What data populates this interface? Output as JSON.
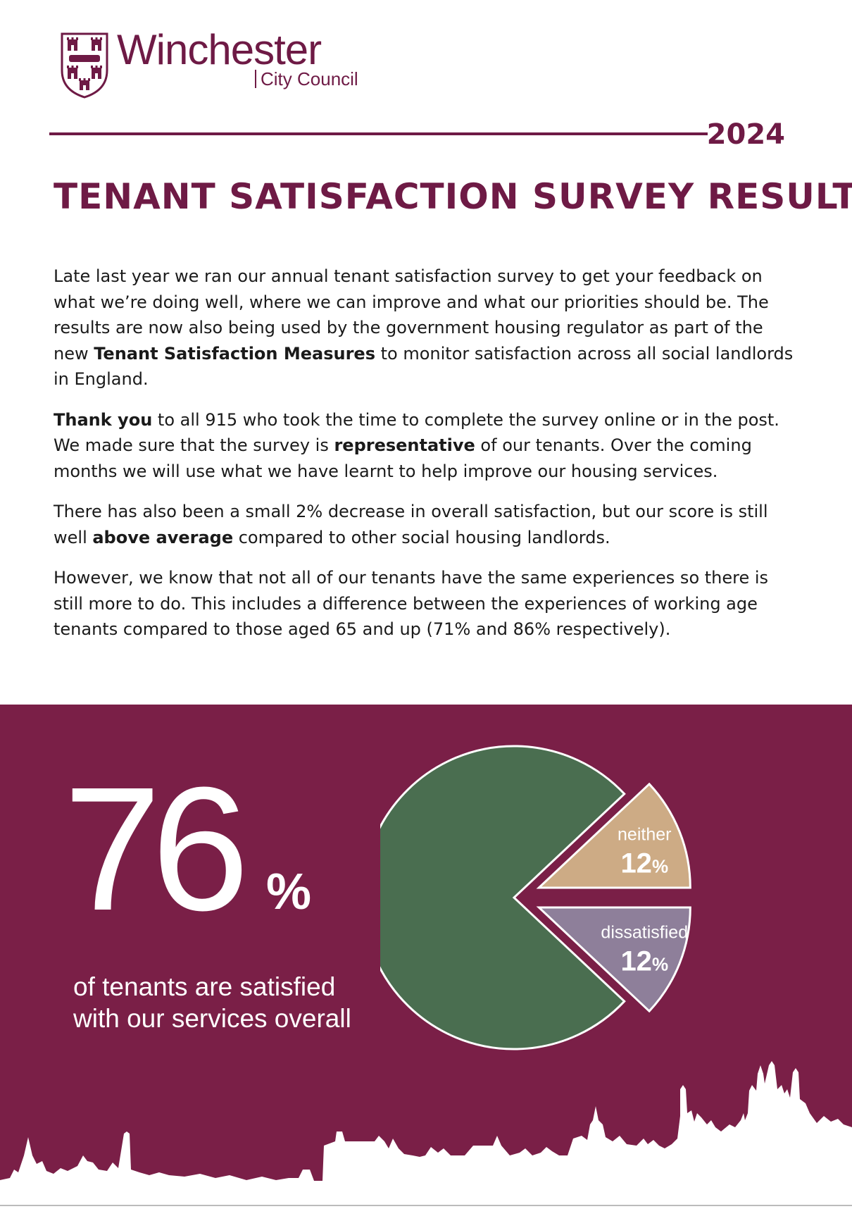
{
  "header": {
    "logo_name": "Winchester",
    "logo_sub": "City Council",
    "year": "2024",
    "title": "TENANT SATISFACTION SURVEY RESULTS"
  },
  "intro": {
    "p1_a": "Late last year we ran our annual tenant satisfaction survey to get your feedback on what we’re doing well, where we can improve and what our priorities should be. The results are now also being used by the government housing regulator as part of the new ",
    "p1_bold": "Tenant Satisfaction Measures",
    "p1_b": " to monitor satisfaction across all social landlords in England.",
    "p2_bold1": "Thank you",
    "p2_a": " to all 915 who took the time to complete the survey online or in the post. We made sure that the survey is ",
    "p2_bold2": "representative",
    "p2_b": " of our tenants. Over the coming months we will use what we have learnt to help improve our housing services.",
    "p3_a": "There has also been a small 2% decrease in overall satisfaction, but our score is still well ",
    "p3_bold": "above average",
    "p3_b": " compared to other social housing landlords.",
    "p4": "However, we know that not all of our tenants have the same experiences so there is still more to do. This includes a difference between the experiences of working age tenants compared to those aged 65 and up (71% and 86% respectively)."
  },
  "headline": {
    "number": "76",
    "percent": "%",
    "caption_line1": "of tenants are satisfied",
    "caption_line2": "with our services overall"
  },
  "colors": {
    "brand": "#6e1a45",
    "panel": "#7a1f47",
    "satisfied": "#4a6e50",
    "neither": "#cdab85",
    "dissatisfied": "#8e7f9a"
  },
  "chart_data": {
    "type": "pie",
    "title": "",
    "slices": [
      {
        "label": "satisfied",
        "value": 76,
        "shown_label": ""
      },
      {
        "label": "neither",
        "value": 12,
        "shown_label": "neither",
        "shown_value": "12",
        "shown_unit": "%"
      },
      {
        "label": "dissatisfied",
        "value": 12,
        "shown_label": "dissatisfied",
        "shown_value": "12",
        "shown_unit": "%"
      }
    ]
  }
}
